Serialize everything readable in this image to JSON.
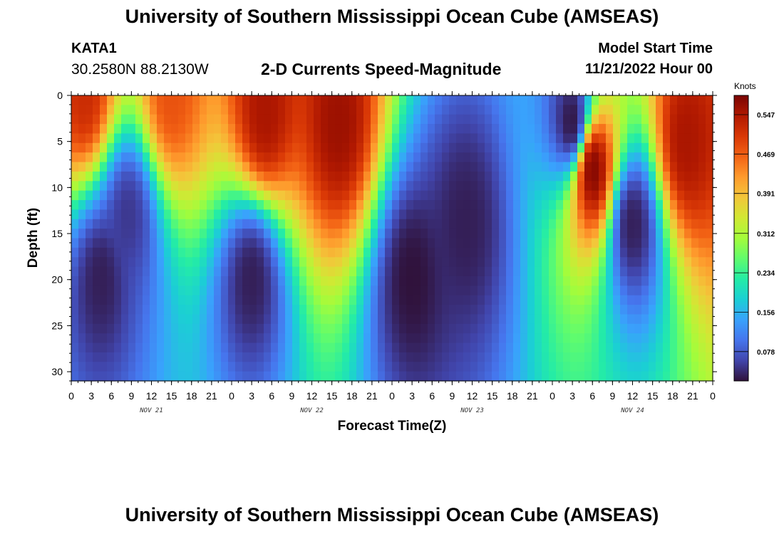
{
  "header": {
    "title": "University of Southern Mississippi Ocean Cube (AMSEAS)",
    "station_id": "KATA1",
    "coordinates": "30.2580N  88.2130W",
    "subtitle": "2-D Currents Speed-Magnitude",
    "model_start_label": "Model Start Time",
    "model_start_value": "11/21/2022 Hour 00"
  },
  "footer": {
    "title": "University of Southern Mississippi Ocean Cube (AMSEAS)"
  },
  "chart_data": {
    "type": "heatmap",
    "title": "2-D Currents Speed-Magnitude",
    "xlabel": "Forecast Time(Z)",
    "ylabel": "Depth (ft)",
    "x_range_hours": [
      0,
      96
    ],
    "x_tick_labels": [
      "0",
      "3",
      "6",
      "9",
      "12",
      "15",
      "18",
      "21",
      "0",
      "3",
      "6",
      "9",
      "12",
      "15",
      "18",
      "21",
      "0",
      "3",
      "6",
      "9",
      "12",
      "15",
      "18",
      "21",
      "0",
      "3",
      "6",
      "9",
      "12",
      "15",
      "18",
      "21",
      "0"
    ],
    "day_labels": [
      "NOV 21",
      "NOV 22",
      "NOV 23",
      "NOV 24"
    ],
    "y_range_ft": [
      0,
      31
    ],
    "y_ticks": [
      0,
      5,
      10,
      15,
      20,
      25,
      30
    ],
    "colorbar": {
      "units": "Knots",
      "range": [
        0.02,
        0.585
      ],
      "ticks": [
        "0.078",
        "0.156",
        "0.234",
        "0.312",
        "0.391",
        "0.469",
        "0.547"
      ],
      "colors": [
        "#30123b",
        "#4145ab",
        "#4675ed",
        "#39a2fc",
        "#1bcfd4",
        "#24eca6",
        "#61fc6c",
        "#a4fc3b",
        "#d1e834",
        "#f3c63a",
        "#fe9b2d",
        "#f36315",
        "#d93806",
        "#b11901",
        "#7a0402"
      ]
    },
    "speed_hotspots_kt": [
      {
        "hour": 2,
        "depth_ft": 0,
        "speed": 0.52
      },
      {
        "hour": 4.5,
        "depth_ft": 20,
        "speed": 0.03
      },
      {
        "hour": 8.5,
        "depth_ft": 13,
        "speed": 0.05
      },
      {
        "hour": 15,
        "depth_ft": 0,
        "speed": 0.48
      },
      {
        "hour": 27,
        "depth_ft": 20,
        "speed": 0.03
      },
      {
        "hour": 29,
        "depth_ft": 2,
        "speed": 0.55
      },
      {
        "hour": 40,
        "depth_ft": 3,
        "speed": 0.56
      },
      {
        "hour": 51,
        "depth_ft": 20,
        "speed": 0.02
      },
      {
        "hour": 59,
        "depth_ft": 14,
        "speed": 0.03
      },
      {
        "hour": 75,
        "depth_ft": 3,
        "speed": 0.02
      },
      {
        "hour": 78,
        "depth_ft": 8,
        "speed": 0.58
      },
      {
        "hour": 84,
        "depth_ft": 14,
        "speed": 0.03
      },
      {
        "hour": 92,
        "depth_ft": 5,
        "speed": 0.55
      }
    ]
  }
}
